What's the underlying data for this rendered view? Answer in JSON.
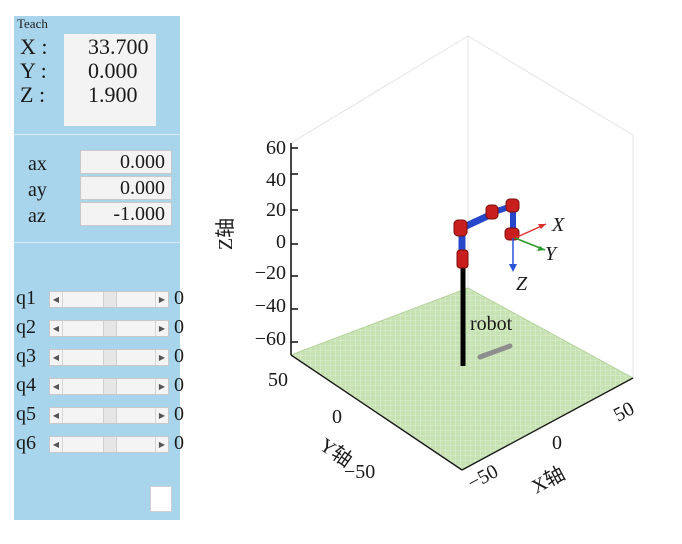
{
  "teach_panel": {
    "title": "Teach",
    "position": [
      {
        "label": "X :",
        "value": "33.700"
      },
      {
        "label": "Y :",
        "value": "0.000"
      },
      {
        "label": "Z :",
        "value": "1.900"
      }
    ],
    "orientation": [
      {
        "label": "ax",
        "value": "0.000"
      },
      {
        "label": "ay",
        "value": "0.000"
      },
      {
        "label": "az",
        "value": "-1.000"
      }
    ],
    "joints": [
      {
        "label": "q1",
        "value": "0"
      },
      {
        "label": "q2",
        "value": "0"
      },
      {
        "label": "q3",
        "value": "0"
      },
      {
        "label": "q4",
        "value": "0"
      },
      {
        "label": "q5",
        "value": "0"
      },
      {
        "label": "q6",
        "value": "0"
      }
    ]
  },
  "plot": {
    "z_label": "Z轴",
    "y_label": "Y轴",
    "x_label": "X轴",
    "z_ticks": [
      "60",
      "40",
      "20",
      "0",
      "−20",
      "−40",
      "−60"
    ],
    "y_ticks": [
      "50",
      "0",
      "−50"
    ],
    "x_ticks": [
      "−50",
      "0",
      "50"
    ],
    "robot_name": "robot",
    "frame_labels": {
      "x": "X",
      "y": "Y",
      "z": "Z"
    },
    "colors": {
      "floor": "#c7e2b2",
      "link": "#2647c9",
      "joint": "#c81e1e",
      "base": "#000000",
      "frame_x": "#e03030",
      "frame_y": "#2e9a2e",
      "frame_z": "#2a55d6"
    }
  }
}
